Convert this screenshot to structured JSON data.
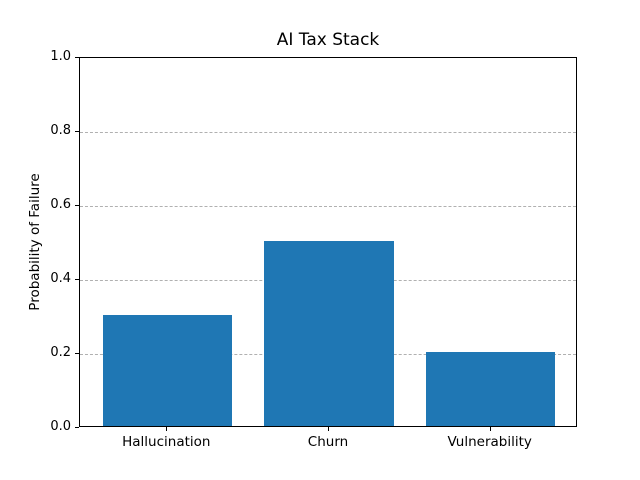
{
  "chart_data": {
    "type": "bar",
    "title": "AI Tax Stack",
    "xlabel": "",
    "ylabel": "Probability of Failure",
    "categories": [
      "Hallucination",
      "Churn",
      "Vulnerability"
    ],
    "values": [
      0.3,
      0.5,
      0.2
    ],
    "ylim": [
      0.0,
      1.0
    ],
    "yticks": [
      0.0,
      0.2,
      0.4,
      0.6,
      0.8,
      1.0
    ],
    "ytick_labels": [
      "0.0",
      "0.2",
      "0.4",
      "0.6",
      "0.8",
      "1.0"
    ],
    "bar_color": "#1f77b4",
    "bar_width_fraction": 0.8,
    "grid": "horizontal-dashed",
    "grid_color": "#b0b0b0",
    "axis_color": "#000000",
    "background_color": "#ffffff",
    "legend": "none"
  }
}
